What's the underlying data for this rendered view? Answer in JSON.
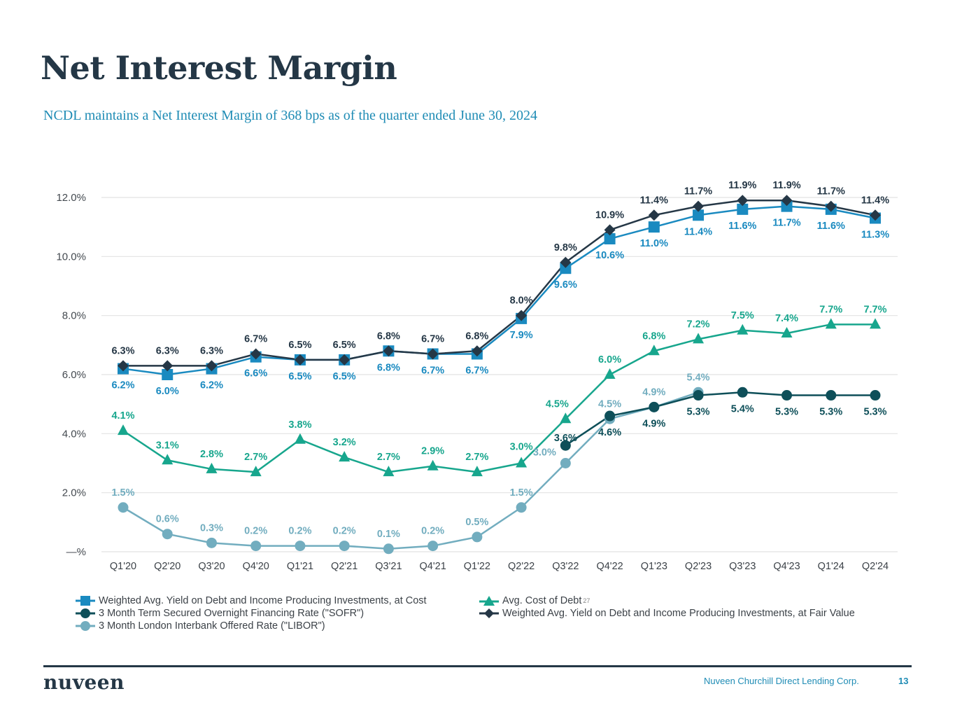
{
  "page": {
    "title": "Net Interest Margin",
    "subtitle": "NCDL maintains a Net Interest Margin of 368 bps as of the quarter ended June 30, 2024"
  },
  "footer": {
    "logo": "nuveen",
    "company": "Nuveen Churchill Direct Lending Corp.",
    "page_number": "13"
  },
  "colors": {
    "yield_cost": "#1a8ac0",
    "yield_fair": "#253746",
    "cost_of_debt": "#17a68d",
    "sofr": "#0e4f59",
    "libor": "#72adbf",
    "grid": "#e2e2e2"
  },
  "chart_data": {
    "type": "line",
    "title": "",
    "xlabel": "",
    "ylabel": "",
    "ylim": [
      0,
      12
    ],
    "yticks": [
      0,
      2,
      4,
      6,
      8,
      10,
      12
    ],
    "ytick_labels": [
      "—%",
      "2.0%",
      "4.0%",
      "6.0%",
      "8.0%",
      "10.0%",
      "12.0%"
    ],
    "grid": true,
    "legend_position": "bottom",
    "categories": [
      "Q1'20",
      "Q2'20",
      "Q3'20",
      "Q4'20",
      "Q1'21",
      "Q2'21",
      "Q3'21",
      "Q4'21",
      "Q1'22",
      "Q2'22",
      "Q3'22",
      "Q4'22",
      "Q1'23",
      "Q2'23",
      "Q3'23",
      "Q4'23",
      "Q1'24",
      "Q2'24"
    ],
    "series": [
      {
        "key": "yield_cost",
        "name": "Weighted Avg. Yield on Debt and Income Producing Investments, at Cost",
        "marker": "square",
        "color": "#1a8ac0",
        "label_position": "below",
        "values": [
          6.2,
          6.0,
          6.2,
          6.6,
          6.5,
          6.5,
          6.8,
          6.7,
          6.7,
          7.9,
          9.6,
          10.6,
          11.0,
          11.4,
          11.6,
          11.7,
          11.6,
          11.3
        ]
      },
      {
        "key": "cost_of_debt",
        "name": "Avg. Cost of Debt",
        "footnote": "27",
        "marker": "triangle",
        "color": "#17a68d",
        "label_position": "above",
        "values": [
          4.1,
          3.1,
          2.8,
          2.7,
          3.8,
          3.2,
          2.7,
          2.9,
          2.7,
          3.0,
          4.5,
          6.0,
          6.8,
          7.2,
          7.5,
          7.4,
          7.7,
          7.7
        ]
      },
      {
        "key": "sofr",
        "name": "3 Month Term Secured Overnight Financing Rate (\"SOFR\")",
        "marker": "circle",
        "color": "#0e4f59",
        "label_position": "below",
        "values": [
          null,
          null,
          null,
          null,
          null,
          null,
          null,
          null,
          null,
          null,
          3.6,
          4.6,
          4.9,
          5.3,
          5.4,
          5.3,
          5.3,
          5.3
        ]
      },
      {
        "key": "yield_fair",
        "name": "Weighted Avg. Yield on Debt and Income Producing Investments, at Fair Value",
        "marker": "diamond",
        "color": "#253746",
        "label_position": "above",
        "values": [
          6.3,
          6.3,
          6.3,
          6.7,
          6.5,
          6.5,
          6.8,
          6.7,
          6.8,
          8.0,
          9.8,
          10.9,
          11.4,
          11.7,
          11.9,
          11.9,
          11.7,
          11.4
        ]
      },
      {
        "key": "libor",
        "name": "3 Month London Interbank Offered Rate (\"LIBOR\")",
        "marker": "circle",
        "color": "#72adbf",
        "label_position": "above",
        "values": [
          1.5,
          0.6,
          0.3,
          0.2,
          0.2,
          0.2,
          0.1,
          0.2,
          0.5,
          1.5,
          3.0,
          4.5,
          4.9,
          5.4,
          null,
          null,
          null,
          null
        ]
      }
    ],
    "legend": [
      {
        "key": "yield_cost",
        "label": "Weighted Avg. Yield on Debt and Income Producing Investments, at Cost"
      },
      {
        "key": "cost_of_debt",
        "label": "Avg. Cost of Debt",
        "footnote": "27"
      },
      {
        "key": "sofr",
        "label": "3 Month Term Secured Overnight Financing Rate (\"SOFR\")"
      },
      {
        "key": "yield_fair",
        "label": "Weighted Avg. Yield on Debt and Income Producing Investments, at Fair Value"
      },
      {
        "key": "libor",
        "label": "3 Month London Interbank Offered Rate (\"LIBOR\")"
      }
    ]
  }
}
